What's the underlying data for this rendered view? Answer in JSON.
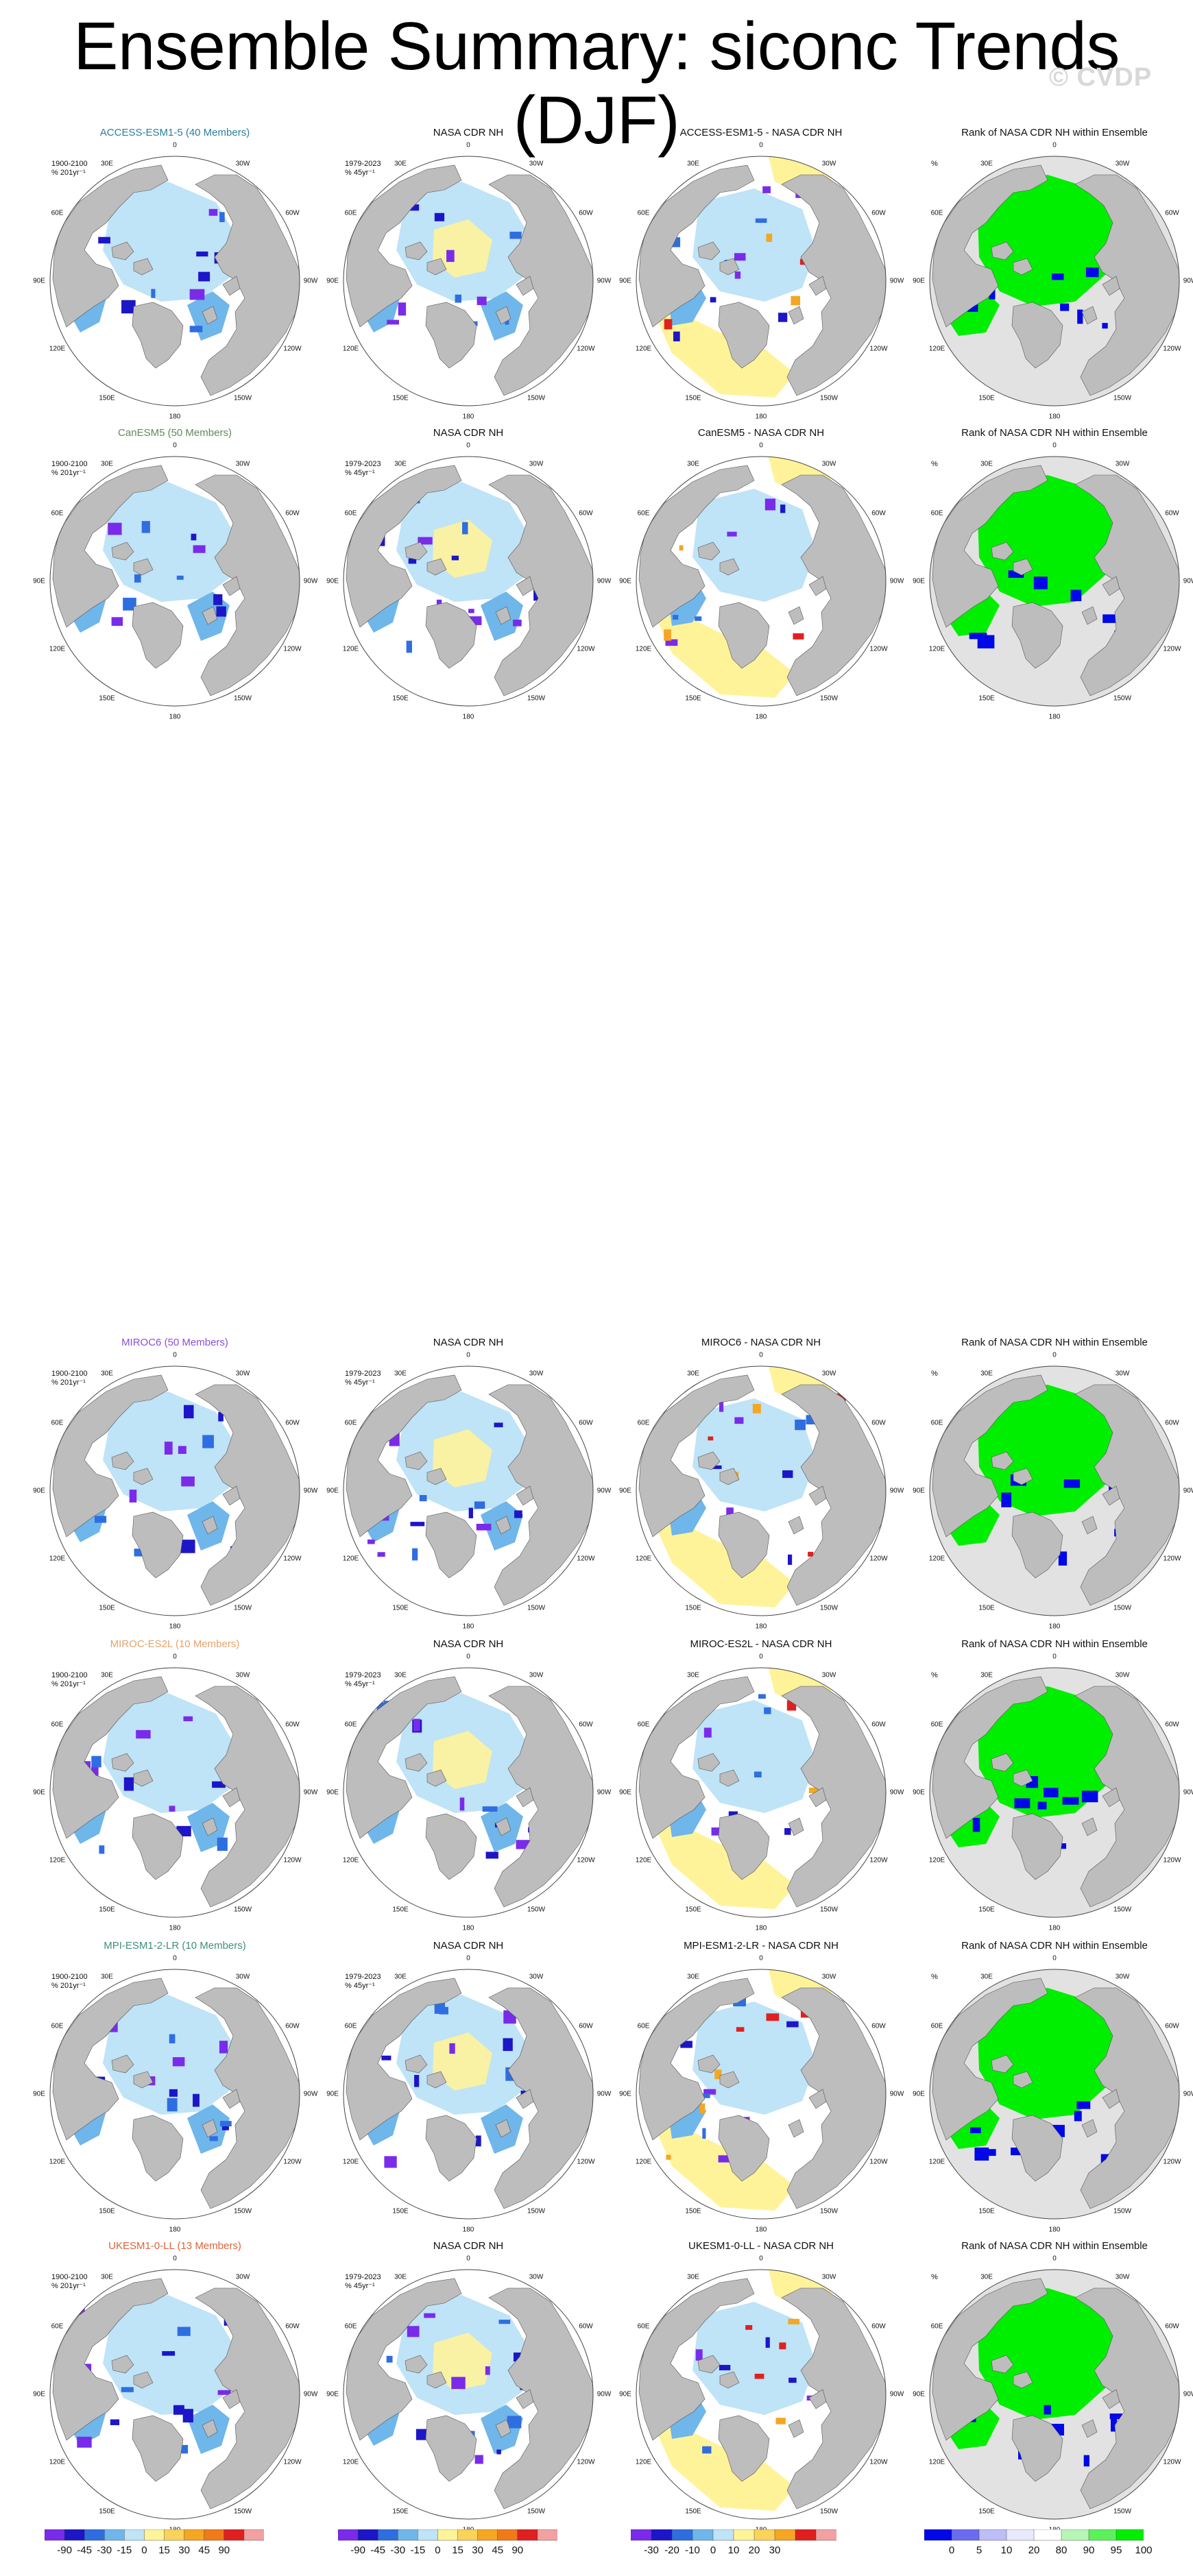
{
  "page": {
    "title": "Ensemble Summary: siconc Trends (DJF)",
    "watermark": "© CVDP"
  },
  "colors": {
    "land": "#bdbdbd",
    "ocean_bg": "#ffffff",
    "light_blue": "#bfe3f7",
    "mid_blue": "#6fb6ea",
    "blue": "#2f6ee0",
    "deep_blue": "#1d16c8",
    "purple": "#7a2bea",
    "yellow": "#fff39a",
    "orange": "#f5a623",
    "red": "#e02020",
    "rank_green": "#00ee00",
    "rank_blue": "#0008e8",
    "rank_grey": "#e2e2e2"
  },
  "lon_labels": [
    "180",
    "150E",
    "120E",
    "90E",
    "60E",
    "30E",
    "0",
    "30W",
    "60W",
    "90W",
    "120W",
    "150W"
  ],
  "rows": [
    {
      "model": "ACCESS-ESM1-5 (40 Members)",
      "model_color": "#2a7f9e",
      "model_period": "1900-2100\n% 201yr⁻¹",
      "obs_title": "NASA CDR NH",
      "obs_period": "1979-2023\n% 45yr⁻¹",
      "diff_title": "ACCESS-ESM1-5 - NASA CDR NH",
      "rank_title": "Rank of NASA CDR NH within Ensemble",
      "rank_unit": "%"
    },
    {
      "model": "CanESM5 (50 Members)",
      "model_color": "#5f8a5a",
      "model_period": "1900-2100\n% 201yr⁻¹",
      "obs_title": "NASA CDR NH",
      "obs_period": "1979-2023\n% 45yr⁻¹",
      "diff_title": "CanESM5 - NASA CDR NH",
      "rank_title": "Rank of NASA CDR NH within Ensemble",
      "rank_unit": "%"
    },
    {
      "model": "MIROC6 (50 Members)",
      "model_color": "#8a4fd8",
      "model_period": "1900-2100\n% 201yr⁻¹",
      "obs_title": "NASA CDR NH",
      "obs_period": "1979-2023\n% 45yr⁻¹",
      "diff_title": "MIROC6 - NASA CDR NH",
      "rank_title": "Rank of NASA CDR NH within Ensemble",
      "rank_unit": "%"
    },
    {
      "model": "MIROC-ES2L (10 Members)",
      "model_color": "#e3a46b",
      "model_period": "1900-2100\n% 201yr⁻¹",
      "obs_title": "NASA CDR NH",
      "obs_period": "1979-2023\n% 45yr⁻¹",
      "diff_title": "MIROC-ES2L - NASA CDR NH",
      "rank_title": "Rank of NASA CDR NH within Ensemble",
      "rank_unit": "%"
    },
    {
      "model": "MPI-ESM1-2-LR (10 Members)",
      "model_color": "#3f8f7a",
      "model_period": "1900-2100\n% 201yr⁻¹",
      "obs_title": "NASA CDR NH",
      "obs_period": "1979-2023\n% 45yr⁻¹",
      "diff_title": "MPI-ESM1-2-LR - NASA CDR NH",
      "rank_title": "Rank of NASA CDR NH within Ensemble",
      "rank_unit": "%"
    },
    {
      "model": "UKESM1-0-LL (13 Members)",
      "model_color": "#e0623a",
      "model_period": "1900-2100\n% 201yr⁻¹",
      "obs_title": "NASA CDR NH",
      "obs_period": "1979-2023\n% 45yr⁻¹",
      "diff_title": "UKESM1-0-LL - NASA CDR NH",
      "rank_title": "Rank of NASA CDR NH within Ensemble",
      "rank_unit": "%"
    }
  ],
  "colorbars": [
    {
      "name": "trend-colorbar-model",
      "ticks": [
        "-90",
        "-45",
        "-30",
        "-15",
        "0",
        "15",
        "30",
        "45",
        "90"
      ],
      "colors": [
        "#7a2bea",
        "#1d16c8",
        "#2f6ee0",
        "#6fb6ea",
        "#bfe3f7",
        "#fff39a",
        "#fbd35a",
        "#f5a623",
        "#f07a1a",
        "#e02020",
        "#f2a0a0"
      ]
    },
    {
      "name": "trend-colorbar-obs",
      "ticks": [
        "-90",
        "-45",
        "-30",
        "-15",
        "0",
        "15",
        "30",
        "45",
        "90"
      ],
      "colors": [
        "#7a2bea",
        "#1d16c8",
        "#2f6ee0",
        "#6fb6ea",
        "#bfe3f7",
        "#fff39a",
        "#fbd35a",
        "#f5a623",
        "#f07a1a",
        "#e02020",
        "#f2a0a0"
      ]
    },
    {
      "name": "difference-colorbar",
      "ticks": [
        "-30",
        "-20",
        "-10",
        "0",
        "10",
        "20",
        "30"
      ],
      "colors": [
        "#7a2bea",
        "#1d16c8",
        "#2f6ee0",
        "#6fb6ea",
        "#bfe3f7",
        "#fff39a",
        "#fbd35a",
        "#f5a623",
        "#e02020",
        "#f2a0a0"
      ]
    },
    {
      "name": "rank-colorbar",
      "ticks": [
        "0",
        "5",
        "10",
        "20",
        "80",
        "90",
        "95",
        "100"
      ],
      "colors": [
        "#0008e8",
        "#6b6bf2",
        "#bdbdf7",
        "#e8e8ff",
        "#ffffff",
        "#b6f5b6",
        "#5cf05c",
        "#00ee00"
      ]
    }
  ]
}
